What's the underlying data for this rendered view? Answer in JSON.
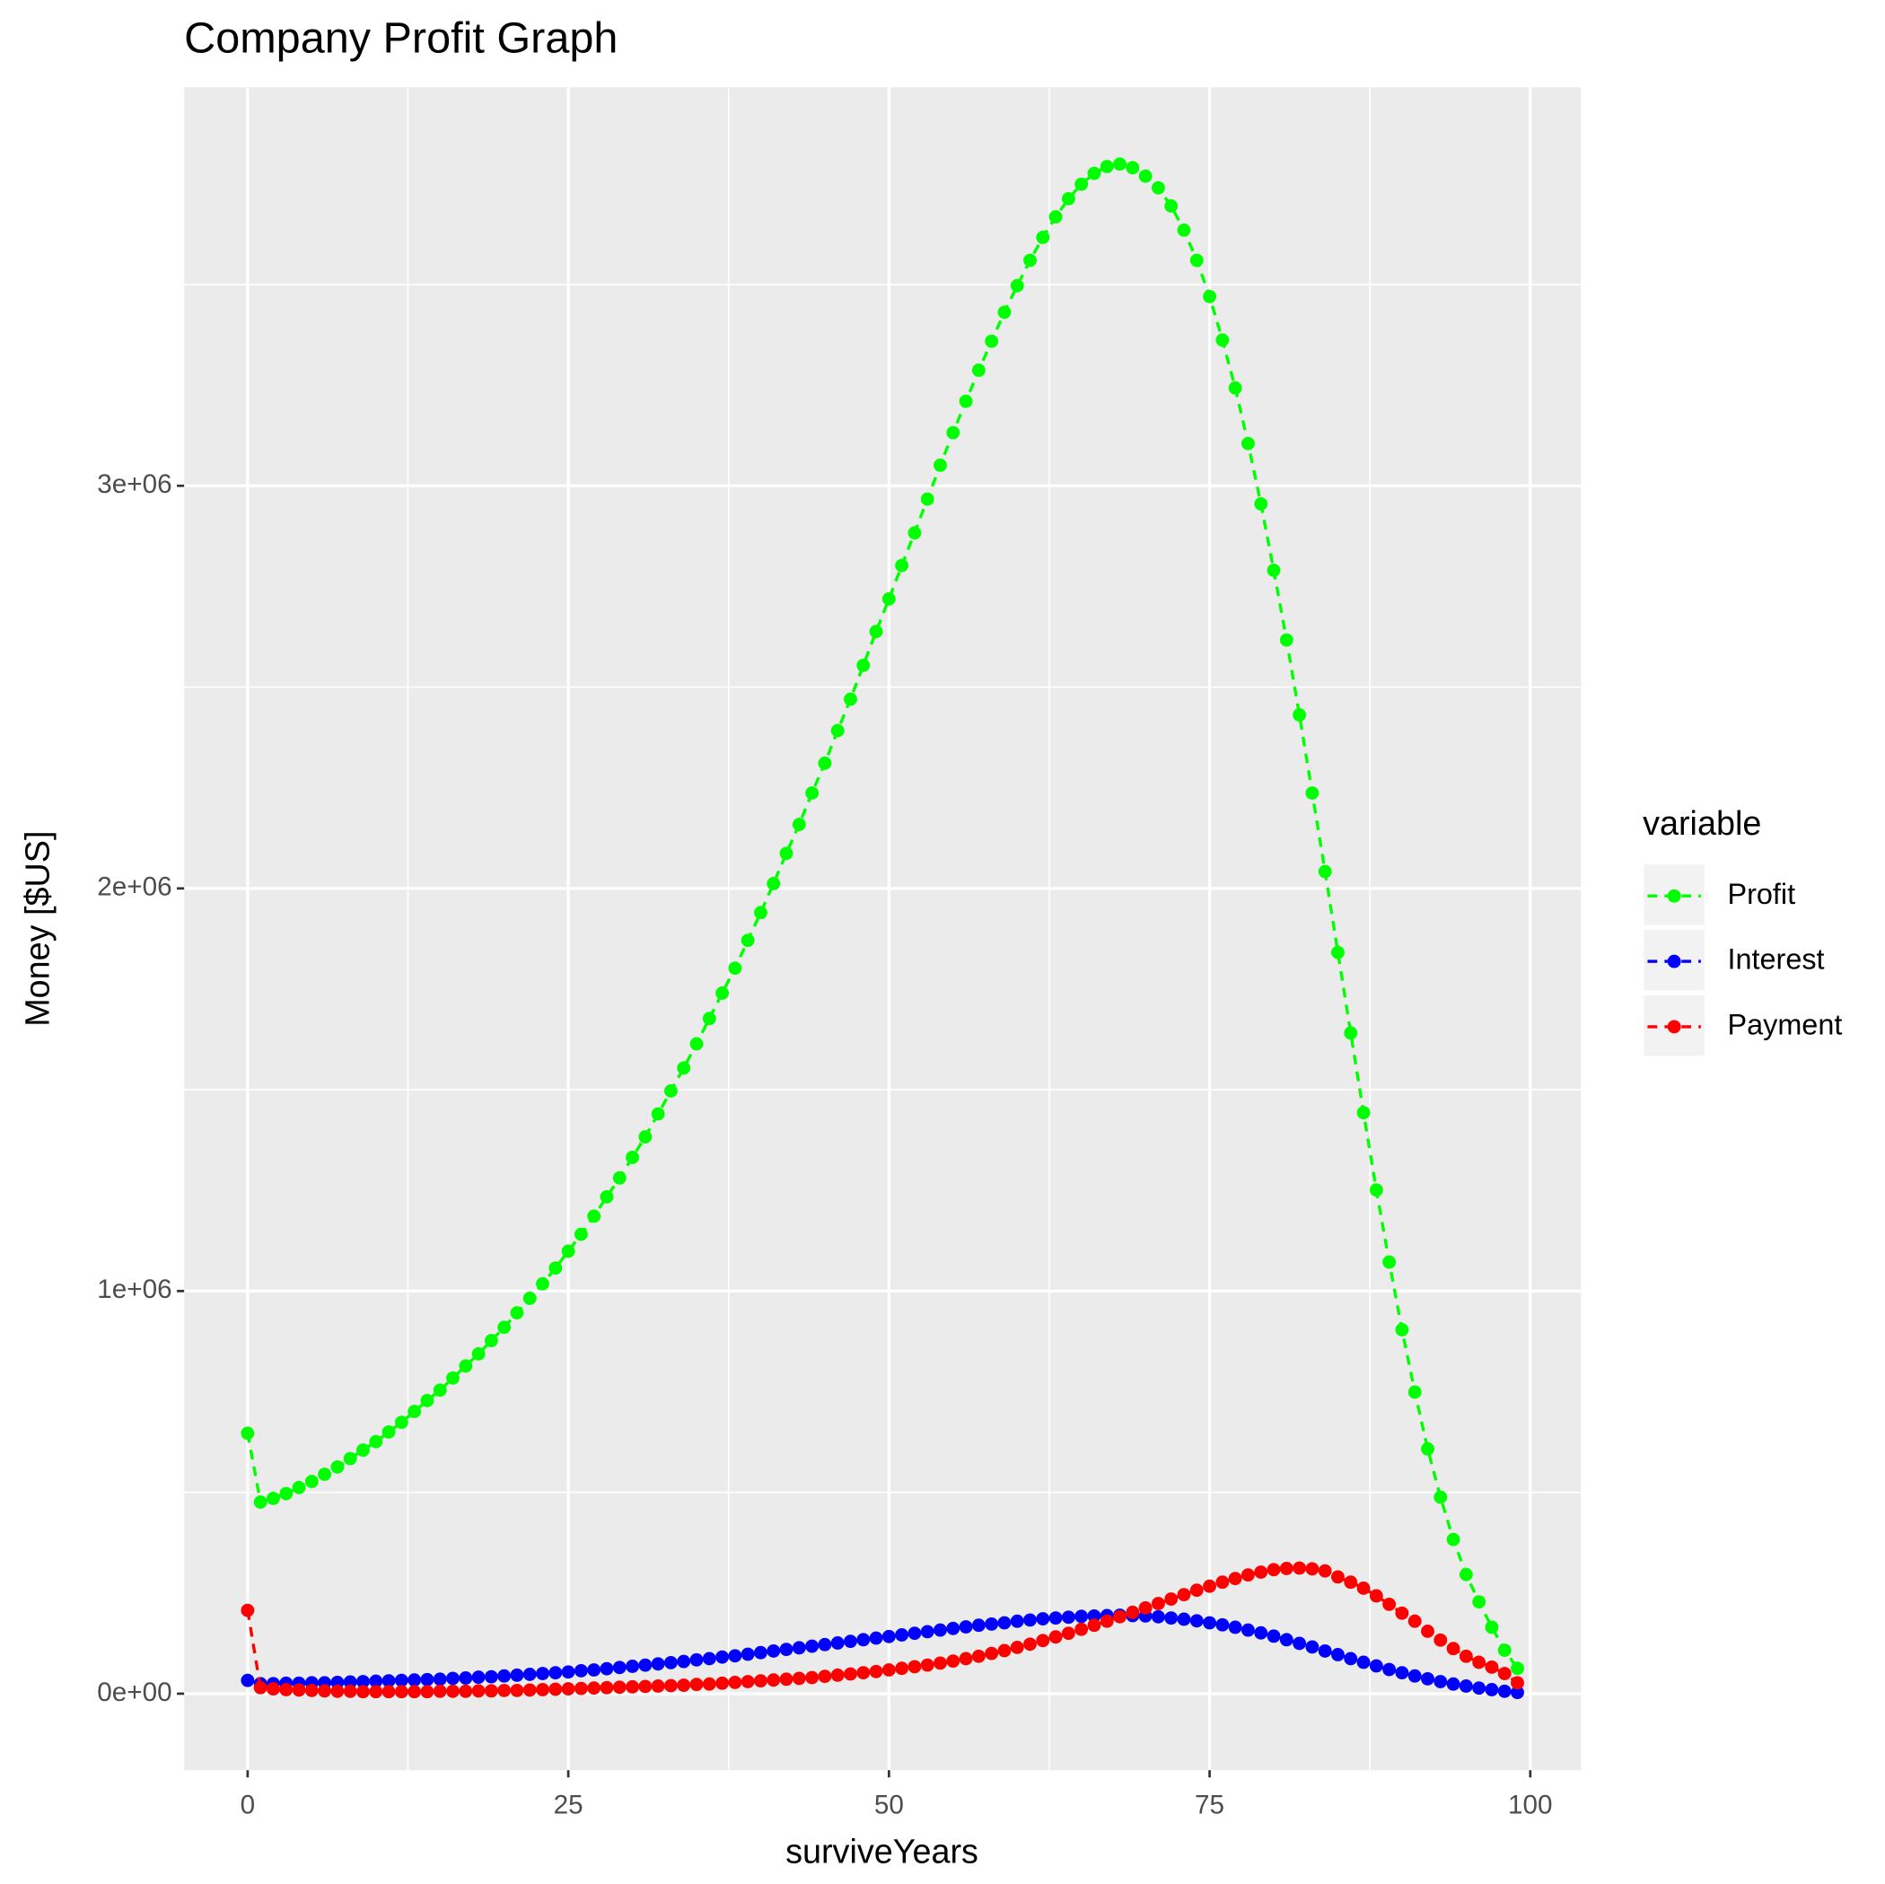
{
  "chart_data": {
    "type": "line",
    "title": "Company Profit Graph",
    "x_label": "surviveYears",
    "y_label": "Money [$US]",
    "legend_title": "variable",
    "legend": "right",
    "grid": true,
    "x": [
      0,
      1,
      2,
      3,
      4,
      5,
      6,
      7,
      8,
      9,
      10,
      11,
      12,
      13,
      14,
      15,
      16,
      17,
      18,
      19,
      20,
      21,
      22,
      23,
      24,
      25,
      26,
      27,
      28,
      29,
      30,
      31,
      32,
      33,
      34,
      35,
      36,
      37,
      38,
      39,
      40,
      41,
      42,
      43,
      44,
      45,
      46,
      47,
      48,
      49,
      50,
      51,
      52,
      53,
      54,
      55,
      56,
      57,
      58,
      59,
      60,
      61,
      62,
      63,
      64,
      65,
      66,
      67,
      68,
      69,
      70,
      71,
      72,
      73,
      74,
      75,
      76,
      77,
      78,
      79,
      80,
      81,
      82,
      83,
      84,
      85,
      86,
      87,
      88,
      89,
      90,
      91,
      92,
      93,
      94,
      95,
      96,
      97,
      98,
      99
    ],
    "xlim": [
      -4.95,
      103.95
    ],
    "xticks": [
      0,
      25,
      50,
      75,
      100
    ],
    "x_minor_gridlines": [
      12.5,
      37.5,
      62.5,
      87.5
    ],
    "ylim": [
      -190000,
      3990000
    ],
    "yticks": [
      {
        "value": 0,
        "label": "0e+00"
      },
      {
        "value": 1000000,
        "label": "1e+06"
      },
      {
        "value": 2000000,
        "label": "2e+06"
      },
      {
        "value": 3000000,
        "label": "3e+06"
      }
    ],
    "y_minor_gridlines": [
      500000,
      1500000,
      2500000,
      3500000
    ],
    "series": [
      {
        "name": "Profit",
        "color": "#00ff00",
        "values": [
          647000,
          476000,
          485000,
          497000,
          512000,
          527000,
          545000,
          563000,
          584000,
          605000,
          626000,
          650000,
          674000,
          701000,
          728000,
          754000,
          784000,
          814000,
          844000,
          877000,
          910000,
          946000,
          982000,
          1018000,
          1057000,
          1099000,
          1141000,
          1186000,
          1234000,
          1281000,
          1332000,
          1383000,
          1440000,
          1497000,
          1554000,
          1614000,
          1677000,
          1740000,
          1802000,
          1871000,
          1940000,
          2012000,
          2087000,
          2159000,
          2237000,
          2311000,
          2392000,
          2470000,
          2554000,
          2638000,
          2719000,
          2802000,
          2883000,
          2967000,
          3051000,
          3132000,
          3210000,
          3287000,
          3359000,
          3431000,
          3497000,
          3560000,
          3617000,
          3668000,
          3713000,
          3749000,
          3776000,
          3793000,
          3799000,
          3790000,
          3769000,
          3740000,
          3695000,
          3635000,
          3560000,
          3470000,
          3362000,
          3243000,
          3105000,
          2955000,
          2790000,
          2617000,
          2431000,
          2237000,
          2042000,
          1841000,
          1641000,
          1443000,
          1251000,
          1072000,
          904000,
          749000,
          608000,
          488000,
          383000,
          296000,
          228000,
          165000,
          108000,
          63000
        ]
      },
      {
        "name": "Interest",
        "color": "#0000ff",
        "values": [
          33000,
          25000,
          25000,
          26000,
          26000,
          27000,
          27000,
          28000,
          29000,
          30000,
          31000,
          32000,
          33000,
          34000,
          35000,
          36000,
          38000,
          39000,
          41000,
          42000,
          44000,
          46000,
          48000,
          50000,
          52000,
          54000,
          57000,
          59000,
          62000,
          65000,
          68000,
          71000,
          74000,
          77000,
          80000,
          84000,
          87000,
          91000,
          94000,
          98000,
          102000,
          106000,
          110000,
          114000,
          118000,
          122000,
          126000,
          130000,
          134000,
          138000,
          142000,
          146000,
          150000,
          154000,
          158000,
          162000,
          166000,
          170000,
          173000,
          176000,
          180000,
          183000,
          186000,
          188000,
          190000,
          192000,
          193000,
          194000,
          195000,
          194000,
          193000,
          191000,
          188000,
          185000,
          181000,
          176000,
          171000,
          165000,
          158000,
          151000,
          143000,
          134000,
          125000,
          116000,
          106000,
          97000,
          87000,
          78000,
          69000,
          60000,
          52000,
          44000,
          37000,
          30000,
          24000,
          19000,
          14000,
          10000,
          6000,
          3000
        ]
      },
      {
        "name": "Payment",
        "color": "#ff0000",
        "values": [
          207000,
          15000,
          12000,
          10000,
          9000,
          8000,
          7000,
          6000,
          6000,
          5000,
          5000,
          5000,
          5000,
          5000,
          5000,
          6000,
          6000,
          6000,
          7000,
          7000,
          8000,
          8000,
          9000,
          10000,
          11000,
          12000,
          13000,
          14000,
          15000,
          16000,
          17000,
          18000,
          19000,
          20000,
          21000,
          23000,
          24000,
          26000,
          28000,
          30000,
          32000,
          34000,
          36000,
          38000,
          40000,
          43000,
          46000,
          49000,
          52000,
          55000,
          59000,
          63000,
          67000,
          71000,
          76000,
          81000,
          87000,
          93000,
          100000,
          107000,
          115000,
          123000,
          132000,
          141000,
          150000,
          160000,
          170000,
          180000,
          191000,
          202000,
          213000,
          224000,
          235000,
          246000,
          257000,
          267000,
          277000,
          286000,
          295000,
          302000,
          308000,
          311000,
          312000,
          310000,
          305000,
          290000,
          277000,
          262000,
          243000,
          222000,
          200000,
          180000,
          155000,
          133000,
          112000,
          93000,
          78000,
          66000,
          50000,
          27000
        ]
      }
    ]
  }
}
